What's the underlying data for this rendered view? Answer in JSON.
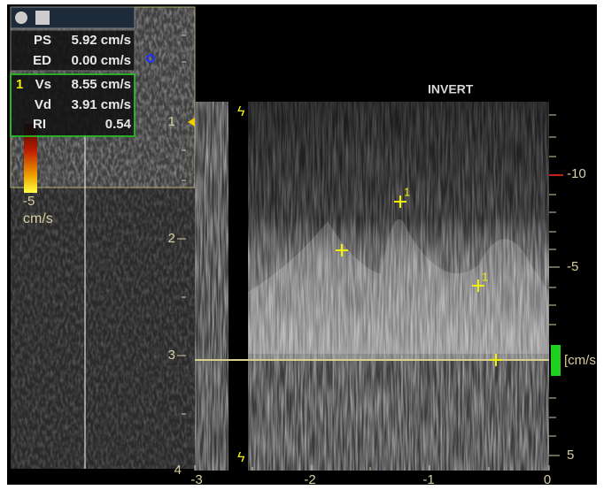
{
  "panel": {
    "group1": [
      {
        "label": "PS",
        "value": "5.92 cm/s"
      },
      {
        "label": "ED",
        "value": "0.00 cm/s"
      }
    ],
    "group2": {
      "marker": "1",
      "rows": [
        {
          "label": "Vs",
          "value": "8.55 cm/s"
        },
        {
          "label": "Vd",
          "value": "3.91 cm/s"
        },
        {
          "label": "RI",
          "value": "0.54"
        }
      ]
    }
  },
  "color_bar": {
    "value": "-5",
    "unit": "cm/s"
  },
  "mode_label": "INVERT",
  "depth_scale": [
    "1",
    "2",
    "3",
    "4"
  ],
  "velocity_scale": [
    "-10",
    "-5",
    "[cm/s",
    "5"
  ],
  "time_axis": [
    "-3",
    "-2",
    "-1",
    "0"
  ],
  "cursor_markers": [
    "1",
    "1"
  ]
}
